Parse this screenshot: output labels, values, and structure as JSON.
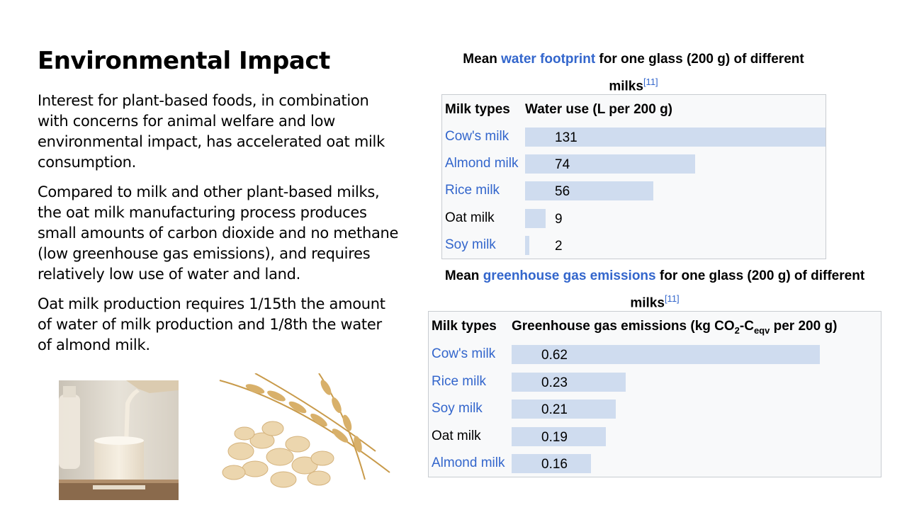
{
  "slide": {
    "title": "Environmental Impact",
    "paragraphs": [
      "Interest for plant-based foods, in combination with concerns for animal welfare and low environmental impact, has accelerated oat milk consumption.",
      "Compared to milk and other plant-based milks, the oat milk manufacturing process produces small amounts of carbon dioxide and no methane (low greenhouse gas emissions), and requires relatively low use of water and land.",
      "Oat milk production requires 1/15th the amount of water of milk production and 1/8th the water of almond milk."
    ]
  },
  "chart_data": [
    {
      "type": "bar",
      "title_pre": "Mean ",
      "title_link": "water footprint",
      "title_post": " for one glass (200 g) of different milks",
      "citation": "[11]",
      "col_label": "Milk types",
      "col_value": "Water use (L per 200 g)",
      "categories": [
        "Cow's milk",
        "Almond milk",
        "Rice milk",
        "Oat milk",
        "Soy milk"
      ],
      "values": [
        131,
        74,
        56,
        9,
        2
      ],
      "linked": [
        true,
        true,
        true,
        false,
        true
      ],
      "bar_color": "#cfdcef"
    },
    {
      "type": "bar",
      "title_pre": "Mean ",
      "title_link": "greenhouse gas emissions",
      "title_post": " for one glass (200 g) of different milks",
      "citation": "[11]",
      "col_label": "Milk types",
      "col_value": "Greenhouse gas emissions (kg CO2-Ceqv per 200 g)",
      "categories": [
        "Cow's milk",
        "Rice milk",
        "Soy milk",
        "Oat milk",
        "Almond milk"
      ],
      "values": [
        0.62,
        0.23,
        0.21,
        0.19,
        0.16
      ],
      "linked": [
        true,
        true,
        true,
        false,
        true
      ],
      "bar_color": "#cfdcef"
    }
  ],
  "images": [
    {
      "icon": "milk-pour-photo"
    },
    {
      "icon": "oat-flakes-photo"
    }
  ],
  "colors": {
    "link": "#3366cc",
    "table_border": "#c8ccd1",
    "table_bg": "#f8f9fa"
  }
}
